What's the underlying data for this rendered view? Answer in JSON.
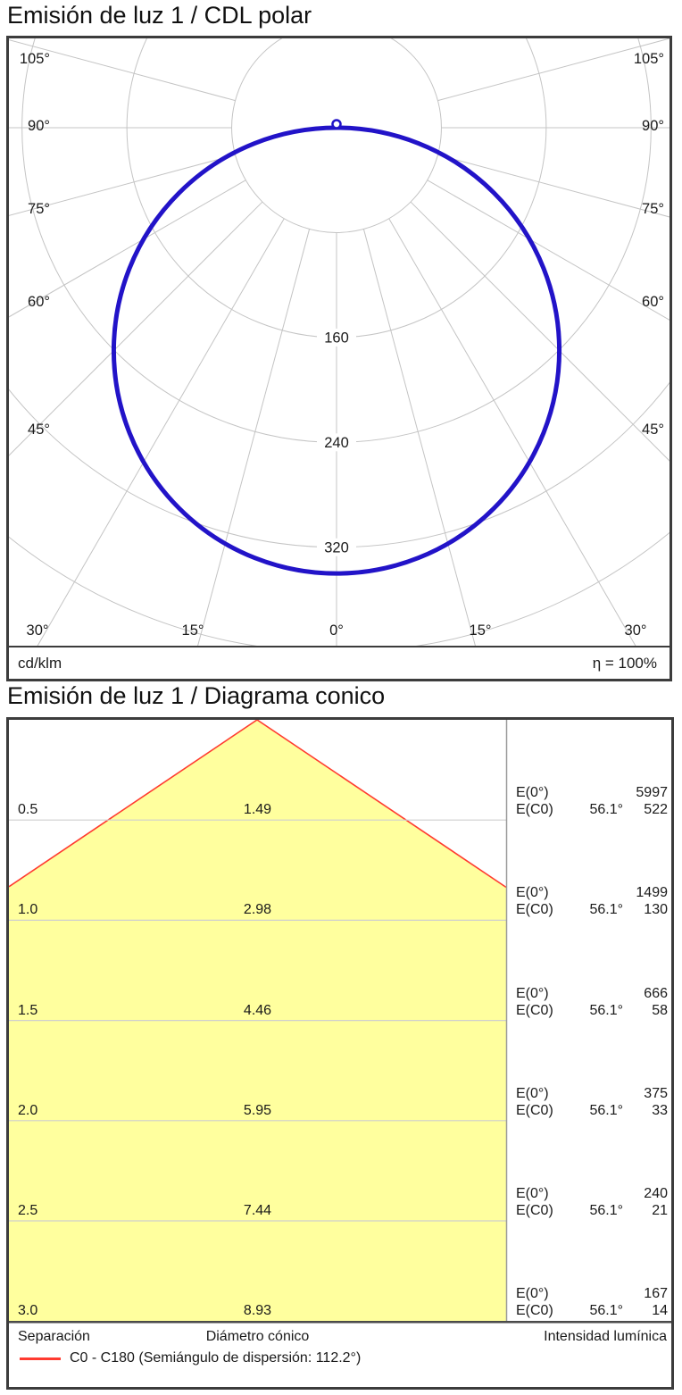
{
  "polar": {
    "title": "Emisión de luz 1 / CDL polar",
    "unit_label": "cd/klm",
    "efficiency_label": "η = 100%",
    "rings": [
      80,
      160,
      240,
      320,
      400
    ],
    "ring_labels": [
      "160",
      "240",
      "320"
    ],
    "angle_labels_left": [
      "105°",
      "90°",
      "75°",
      "60°",
      "45°"
    ],
    "angle_labels_right": [
      "105°",
      "90°",
      "75°",
      "60°",
      "45°"
    ],
    "angle_labels_bottom": [
      "30°",
      "15°",
      "0°",
      "15°",
      "30°"
    ],
    "curve_peak_cd_per_klm": 340
  },
  "cone": {
    "title": "Emisión de luz 1 / Diagrama conico",
    "semiangle_deg": 56.1,
    "e_labels": {
      "e0": "E(0°)",
      "ec0": "E(C0)"
    },
    "rows": [
      {
        "separation": "0.5",
        "diameter": "1.49",
        "angle": "56.1°",
        "e0": "5997",
        "ec0": "522"
      },
      {
        "separation": "1.0",
        "diameter": "2.98",
        "angle": "56.1°",
        "e0": "1499",
        "ec0": "130"
      },
      {
        "separation": "1.5",
        "diameter": "4.46",
        "angle": "56.1°",
        "e0": "666",
        "ec0": "58"
      },
      {
        "separation": "2.0",
        "diameter": "5.95",
        "angle": "56.1°",
        "e0": "375",
        "ec0": "33"
      },
      {
        "separation": "2.5",
        "diameter": "7.44",
        "angle": "56.1°",
        "e0": "240",
        "ec0": "21"
      },
      {
        "separation": "3.0",
        "diameter": "8.93",
        "angle": "56.1°",
        "e0": "167",
        "ec0": "14"
      }
    ],
    "footer": {
      "separation": "Separación",
      "diameter": "Diámetro cónico",
      "intensity": "Intensidad lumínica"
    },
    "legend": "C0 - C180 (Semiángulo de dispersión: 112.2°)"
  },
  "colors": {
    "curve_blue": "#2213c8",
    "cone_fill": "#ffff9e",
    "cone_edge": "#ff3b30",
    "grid_gray": "#c4c4c4",
    "row_line_gray": "#cfcfcf",
    "divider_gray": "#9a9a9a",
    "dark_line": "#4a4a4a",
    "text": "#1a1a1a"
  },
  "chart_data": [
    {
      "type": "line",
      "subtype": "polar-intensity-distribution",
      "title": "Emisión de luz 1 / CDL polar",
      "units": "cd/klm",
      "angle_ticks_deg": [
        0,
        15,
        30,
        45,
        60,
        75,
        90,
        105
      ],
      "radial_ticks": [
        80,
        160,
        240,
        320,
        400
      ],
      "labeled_radial_ticks": [
        160,
        240,
        320
      ],
      "efficiency": "η = 100%",
      "series": [
        {
          "name": "C0 - C180",
          "color": "#2213c8",
          "model": "I(γ) = I0 · cos(γ)  (lambertian, circle in polar plot)",
          "I0_cd_per_klm": 340,
          "points_gamma_deg": [
            0,
            15,
            30,
            45,
            60,
            75,
            90
          ],
          "points_I_cd_per_klm": [
            340,
            328,
            294,
            240,
            170,
            88,
            0
          ]
        }
      ]
    },
    {
      "type": "table",
      "title": "Emisión de luz 1 / Diagrama conico",
      "columns": [
        "Separación (m)",
        "Diámetro cónico (m)",
        "E(0°) lx",
        "E(C0) ángulo",
        "E(C0) lx"
      ],
      "rows": [
        [
          0.5,
          1.49,
          5997,
          "56.1°",
          522
        ],
        [
          1.0,
          2.98,
          1499,
          "56.1°",
          130
        ],
        [
          1.5,
          4.46,
          666,
          "56.1°",
          58
        ],
        [
          2.0,
          5.95,
          375,
          "56.1°",
          33
        ],
        [
          2.5,
          7.44,
          240,
          "56.1°",
          21
        ],
        [
          3.0,
          8.93,
          167,
          "56.1°",
          14
        ]
      ],
      "legend": "C0 - C180 (Semiángulo de dispersión: 112.2°)",
      "beam_semiangle_deg": 56.1,
      "full_dispersion_angle_deg": 112.2
    }
  ]
}
